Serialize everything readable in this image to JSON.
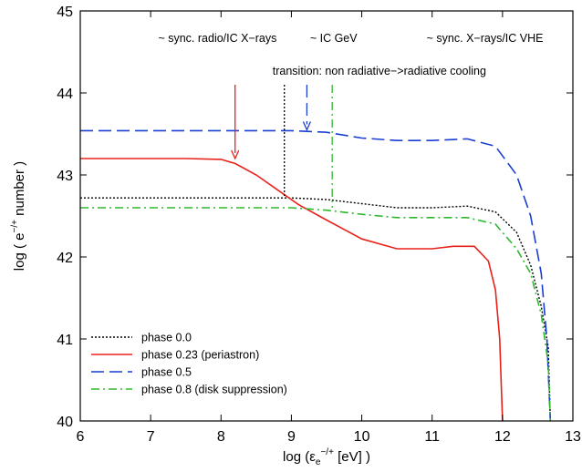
{
  "chart_data": {
    "type": "line",
    "xlabel_prefix": "log (ε",
    "xlabel_sub": "e",
    "xlabel_sup": "−/+",
    "xlabel_suffix": " [eV] )",
    "ylabel_prefix": "log ( e",
    "ylabel_sup": "−/+",
    "ylabel_suffix": " number )",
    "xlim": [
      6,
      13
    ],
    "ylim": [
      40,
      45
    ],
    "xticks": [
      6,
      7,
      8,
      9,
      10,
      11,
      12,
      13
    ],
    "yticks": [
      40,
      41,
      42,
      43,
      44,
      45
    ],
    "grid": false,
    "legend_position": "bottom-left",
    "series": [
      {
        "name": "phase 0.0",
        "color": "#000000",
        "dash": "dotted",
        "x": [
          6,
          8.5,
          9.0,
          9.5,
          10.0,
          10.5,
          11.0,
          11.5,
          11.9,
          12.2,
          12.4,
          12.55,
          12.65,
          12.68
        ],
        "y": [
          42.72,
          42.72,
          42.72,
          42.7,
          42.65,
          42.6,
          42.6,
          42.62,
          42.55,
          42.3,
          41.9,
          41.4,
          40.9,
          40.0
        ]
      },
      {
        "name": "phase 0.23 (periastron)",
        "color": "#e8221a",
        "dash": "solid",
        "x": [
          6,
          7.5,
          8.0,
          8.2,
          8.5,
          8.8,
          9.1,
          9.5,
          10.0,
          10.5,
          11.0,
          11.3,
          11.6,
          11.8,
          11.9,
          11.96,
          11.98,
          12.0
        ],
        "y": [
          43.2,
          43.2,
          43.19,
          43.14,
          43.0,
          42.82,
          42.64,
          42.45,
          42.22,
          42.1,
          42.1,
          42.13,
          42.13,
          41.95,
          41.6,
          41.0,
          40.5,
          40.0
        ]
      },
      {
        "name": "phase 0.5",
        "color": "#1a3fd1",
        "dash": "long-dash",
        "x": [
          6,
          9.0,
          9.5,
          10.0,
          10.5,
          11.0,
          11.5,
          11.9,
          12.2,
          12.4,
          12.55,
          12.63,
          12.68
        ],
        "y": [
          43.54,
          43.54,
          43.52,
          43.45,
          43.42,
          43.42,
          43.44,
          43.35,
          43.0,
          42.5,
          41.8,
          41.0,
          40.0
        ]
      },
      {
        "name": "phase 0.8 (disk suppression)",
        "color": "#2db82d",
        "dash": "dash-dot",
        "x": [
          6,
          9.0,
          9.5,
          10.0,
          10.5,
          11.0,
          11.5,
          11.9,
          12.2,
          12.4,
          12.55,
          12.65,
          12.68
        ],
        "y": [
          42.6,
          42.6,
          42.57,
          42.52,
          42.48,
          42.48,
          42.48,
          42.4,
          42.1,
          41.8,
          41.3,
          40.7,
          40.0
        ]
      }
    ],
    "annotations": [
      {
        "id": "label-radio",
        "text": "~ sync. radio/IC X−rays",
        "x": 7.95,
        "y": 44.62
      },
      {
        "id": "label-gev",
        "text": "~ IC GeV",
        "x": 9.6,
        "y": 44.62
      },
      {
        "id": "label-vhe",
        "text": "~ sync. X−rays/IC VHE",
        "x": 11.75,
        "y": 44.62
      },
      {
        "id": "label-transition",
        "text": "transition: non radiative−>radiative cooling",
        "x": 10.25,
        "y": 44.22
      }
    ],
    "markers": [
      {
        "id": "arrow-red",
        "type": "arrow",
        "color": "#e8221a",
        "dash": "solid",
        "x": 8.2,
        "y_top": 44.1,
        "y_bottom": 43.2
      },
      {
        "id": "arrow-blue",
        "type": "arrow",
        "color": "#1a3fd1",
        "dash": "long-dash",
        "x": 9.22,
        "y_top": 44.1,
        "y_bottom": 43.55
      },
      {
        "id": "vline-black",
        "type": "vline",
        "color": "#000000",
        "dash": "dotted",
        "x": 8.9,
        "y_top": 44.1,
        "y_bottom": 42.72
      },
      {
        "id": "vline-green",
        "type": "vline",
        "color": "#2db82d",
        "dash": "dash-dot",
        "x": 9.58,
        "y_top": 44.1,
        "y_bottom": 42.6
      }
    ]
  }
}
